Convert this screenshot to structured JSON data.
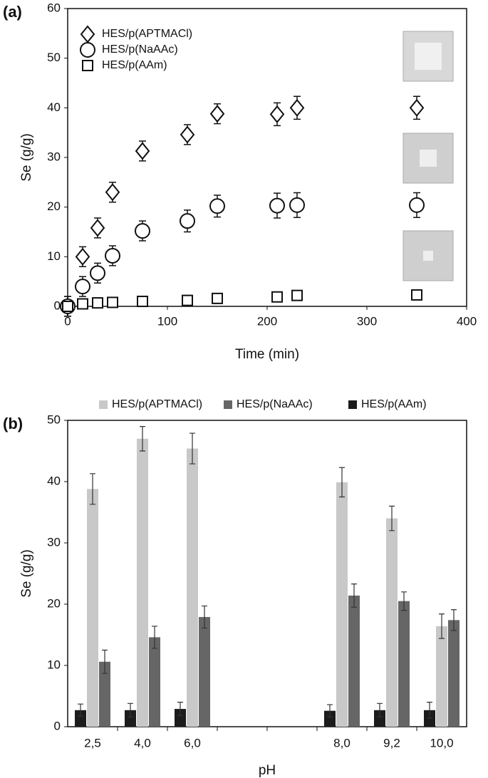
{
  "chart_data": [
    {
      "type": "scatter",
      "panel_label": "(a)",
      "xlabel": "Time (min)",
      "ylabel": "Se (g/g)",
      "xlim": [
        0,
        400
      ],
      "xticks": [
        0,
        100,
        200,
        300,
        400
      ],
      "ylim": [
        0,
        60
      ],
      "yticks": [
        0,
        10,
        20,
        30,
        40,
        50,
        60
      ],
      "legend": "upper left",
      "series": [
        {
          "name": "HES/p(APTMACl)",
          "marker": "diamond",
          "color": "#111111",
          "x": [
            0,
            15,
            30,
            45,
            75,
            120,
            150,
            210,
            230,
            350
          ],
          "values": [
            0,
            10,
            15.8,
            23,
            31.3,
            34.6,
            38.8,
            38.7,
            40,
            40
          ],
          "errors": [
            2,
            2,
            2,
            2,
            2,
            2,
            2,
            2.3,
            2.3,
            2.3
          ]
        },
        {
          "name": "HES/p(NaAAc)",
          "marker": "circle",
          "color": "#111111",
          "x": [
            0,
            15,
            30,
            45,
            75,
            120,
            150,
            210,
            230,
            350
          ],
          "values": [
            0,
            4,
            6.7,
            10.2,
            15.2,
            17.2,
            20.2,
            20.3,
            20.4,
            20.4
          ],
          "errors": [
            2,
            2,
            2,
            2,
            2,
            2.2,
            2.2,
            2.5,
            2.5,
            2.5
          ]
        },
        {
          "name": "HES/p(AAm)",
          "marker": "square",
          "color": "#111111",
          "x": [
            0,
            15,
            30,
            45,
            75,
            120,
            150,
            210,
            230,
            350
          ],
          "values": [
            0,
            0.5,
            0.7,
            0.8,
            1,
            1.2,
            1.6,
            1.9,
            2.2,
            2.3
          ],
          "errors": [
            1,
            1,
            1,
            1,
            1,
            1,
            1,
            1,
            1,
            1
          ]
        }
      ]
    },
    {
      "type": "bar",
      "panel_label": "(b)",
      "xlabel": "pH",
      "ylabel": "Se (g/g)",
      "categories": [
        "2,5",
        "4,0",
        "6,0",
        null,
        null,
        "8,0",
        "9,2",
        "10,0"
      ],
      "ylim": [
        0,
        50
      ],
      "yticks": [
        0,
        10,
        20,
        30,
        40,
        50
      ],
      "legend": "top",
      "series": [
        {
          "name": "HES/p(APTMACl)",
          "color": "#c8c8c8",
          "values": [
            38.8,
            47,
            45.4,
            null,
            null,
            39.9,
            34,
            16.4
          ],
          "errors": [
            2.5,
            2,
            2.5,
            null,
            null,
            2.4,
            2,
            2
          ]
        },
        {
          "name": "HES/p(NaAAc)",
          "color": "#666666",
          "values": [
            10.6,
            14.6,
            17.9,
            null,
            null,
            21.4,
            20.5,
            17.4
          ],
          "errors": [
            1.9,
            1.8,
            1.8,
            null,
            null,
            1.9,
            1.5,
            1.7
          ]
        },
        {
          "name": "HES/p(AAm)",
          "color": "#1c1c1c",
          "values": [
            2.7,
            2.7,
            2.9,
            null,
            null,
            2.6,
            2.7,
            2.7
          ],
          "errors": [
            1,
            1.1,
            1.1,
            null,
            null,
            1,
            1.1,
            1.3
          ]
        }
      ]
    }
  ]
}
